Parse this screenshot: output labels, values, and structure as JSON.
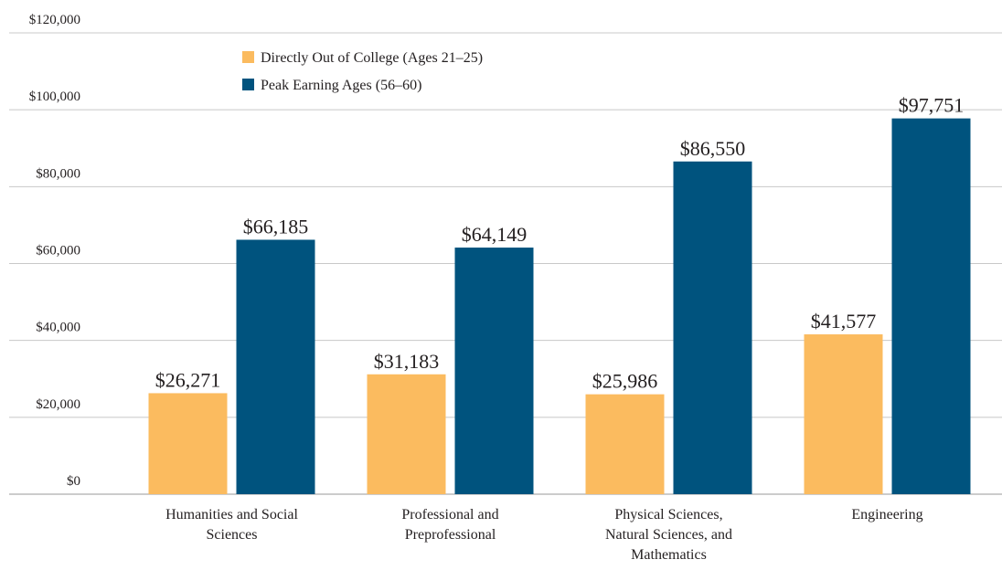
{
  "chart_data": {
    "type": "bar",
    "categories": [
      "Humanities and Social Sciences",
      "Professional and Preprofessional",
      "Physical Sciences, Natural Sciences, and Mathematics",
      "Engineering"
    ],
    "series": [
      {
        "name": "Directly Out of College (Ages 21–25)",
        "color": "#fbbb5f",
        "values": [
          26271,
          31183,
          25986,
          41577
        ],
        "value_labels": [
          "$26,271",
          "$31,183",
          "$25,986",
          "$41,577"
        ]
      },
      {
        "name": "Peak Earning Ages (56–60)",
        "color": "#00537e",
        "values": [
          66185,
          64149,
          86550,
          97751
        ],
        "value_labels": [
          "$66,185",
          "$64,149",
          "$86,550",
          "$97,751"
        ]
      }
    ],
    "ylim": [
      0,
      120000
    ],
    "yticks": [
      {
        "value": 0,
        "label": "$0"
      },
      {
        "value": 20000,
        "label": "$20,000"
      },
      {
        "value": 40000,
        "label": "$40,000"
      },
      {
        "value": 60000,
        "label": "$60,000"
      },
      {
        "value": 80000,
        "label": "$80,000"
      },
      {
        "value": 100000,
        "label": "$100,000"
      },
      {
        "value": 120000,
        "label": "$120,000"
      }
    ],
    "grid": true,
    "legend": "top-left"
  }
}
